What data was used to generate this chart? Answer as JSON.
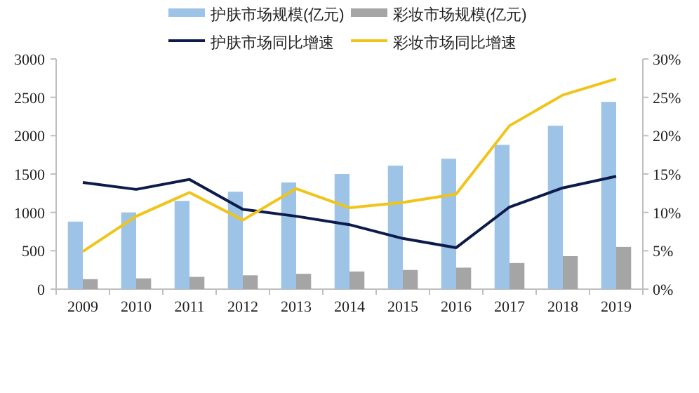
{
  "chart_data": {
    "type": "bar",
    "categories": [
      "2009",
      "2010",
      "2011",
      "2012",
      "2013",
      "2014",
      "2015",
      "2016",
      "2017",
      "2018",
      "2019"
    ],
    "series": [
      {
        "name": "护肤市场规模(亿元)",
        "color": "#9dc3e6",
        "values": [
          880,
          1000,
          1150,
          1270,
          1390,
          1500,
          1610,
          1700,
          1880,
          2130,
          2440
        ]
      },
      {
        "name": "彩妆市场规模(亿元)",
        "color": "#a5a5a5",
        "values": [
          130,
          140,
          160,
          180,
          200,
          230,
          250,
          280,
          340,
          430,
          550
        ]
      },
      {
        "name": "护肤市场同比增速",
        "type": "line",
        "axis": "y2",
        "color": "#0d1b4c",
        "values": [
          13.9,
          13.0,
          14.3,
          10.4,
          9.5,
          8.4,
          6.6,
          5.4,
          10.7,
          13.2,
          14.7
        ]
      },
      {
        "name": "彩妆市场同比增速",
        "type": "line",
        "axis": "y2",
        "color": "#f0c419",
        "values": [
          4.9,
          9.5,
          12.6,
          9.0,
          13.1,
          10.6,
          11.3,
          12.4,
          21.3,
          25.3,
          27.4
        ]
      }
    ],
    "ylim": [
      0,
      3000
    ],
    "yticks": [
      0,
      500,
      1000,
      1500,
      2000,
      2500,
      3000
    ],
    "y2lim": [
      0,
      30
    ],
    "y2ticks": [
      {
        "value": 0,
        "label": "0%"
      },
      {
        "value": 5,
        "label": "5%"
      },
      {
        "value": 10,
        "label": "10%"
      },
      {
        "value": 15,
        "label": "15%"
      },
      {
        "value": 20,
        "label": "20%"
      },
      {
        "value": 25,
        "label": "25%"
      },
      {
        "value": 30,
        "label": "30%"
      }
    ],
    "grid": false,
    "legend": "top",
    "marker": "none",
    "line_style": "solid"
  }
}
